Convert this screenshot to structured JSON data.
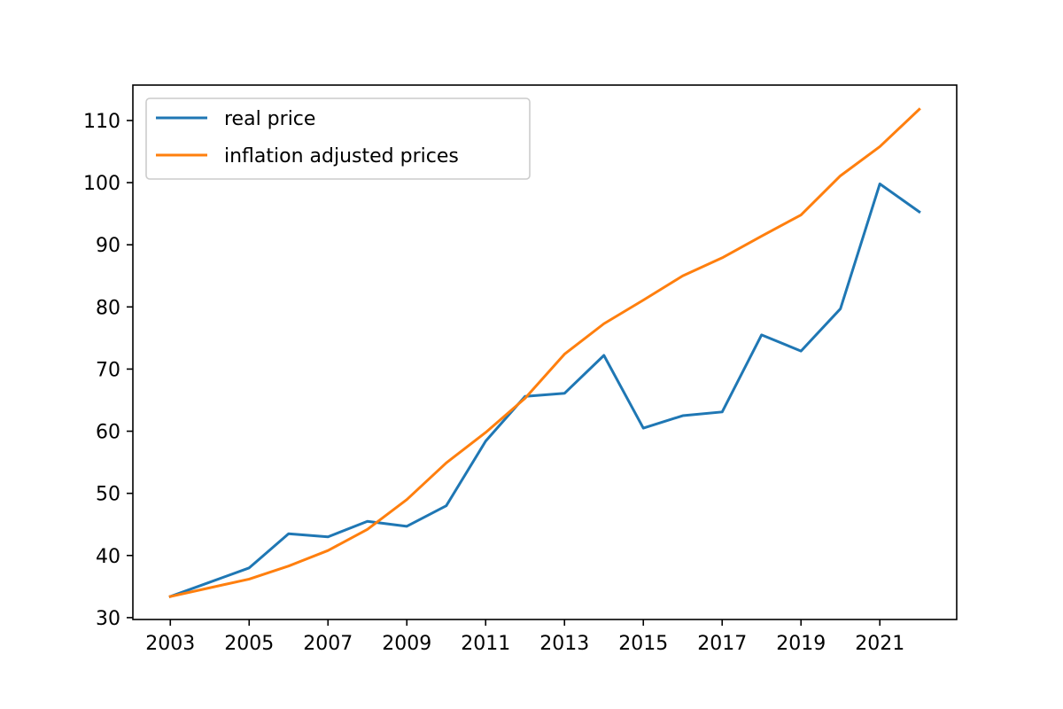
{
  "chart_data": {
    "type": "line",
    "title": "",
    "xlabel": "",
    "ylabel": "",
    "x": [
      2003,
      2004,
      2005,
      2006,
      2007,
      2008,
      2009,
      2010,
      2011,
      2012,
      2013,
      2014,
      2015,
      2016,
      2017,
      2018,
      2019,
      2020,
      2021,
      2022
    ],
    "xlim": [
      2002.05,
      2022.95
    ],
    "ylim": [
      29.7,
      115.7
    ],
    "xticks": [
      2003,
      2005,
      2007,
      2009,
      2011,
      2013,
      2015,
      2017,
      2019,
      2021
    ],
    "yticks": [
      30,
      40,
      50,
      60,
      70,
      80,
      90,
      100,
      110
    ],
    "grid": false,
    "legend_position": "top-left",
    "series": [
      {
        "name": "real price",
        "color": "#1f77b4",
        "values": [
          33.4,
          35.7,
          38.0,
          43.5,
          43.0,
          45.5,
          44.7,
          48.0,
          58.4,
          65.6,
          66.1,
          72.2,
          60.5,
          62.5,
          63.1,
          75.5,
          72.9,
          79.7,
          99.8,
          95.3
        ]
      },
      {
        "name": "inflation adjusted prices",
        "color": "#ff7f0e",
        "values": [
          33.4,
          34.8,
          36.2,
          38.3,
          40.8,
          44.2,
          49.0,
          54.9,
          59.8,
          65.3,
          72.4,
          77.3,
          81.1,
          85.0,
          87.9,
          91.4,
          94.8,
          101.1,
          105.8,
          111.8
        ]
      }
    ]
  }
}
